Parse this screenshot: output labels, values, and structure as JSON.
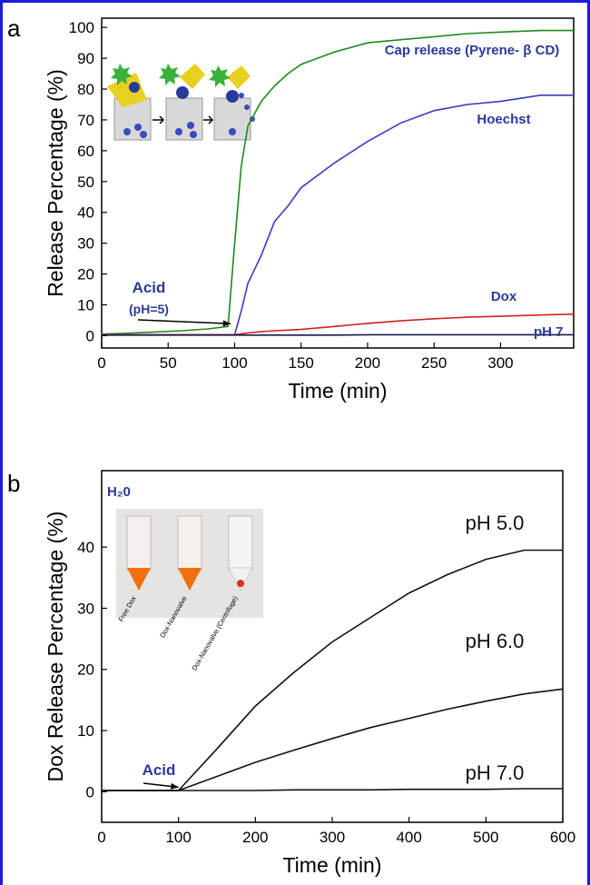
{
  "chart_data": [
    {
      "type": "line",
      "panel": "a",
      "x_label": "Time (min)",
      "y_label": "Release Percentage (%)",
      "xlim": [
        0,
        355
      ],
      "ylim": [
        -4,
        103
      ],
      "xticks": [
        0,
        50,
        100,
        150,
        200,
        250,
        300
      ],
      "yticks": [
        0,
        10,
        20,
        30,
        40,
        50,
        60,
        70,
        80,
        90,
        100
      ],
      "x": [
        0,
        20,
        40,
        60,
        80,
        95,
        100,
        105,
        110,
        120,
        130,
        140,
        150,
        175,
        200,
        225,
        250,
        275,
        300,
        330,
        355
      ],
      "series": [
        {
          "name": "Cap release (Pyrene- β CD)",
          "color": "#1f8a1f",
          "values": [
            0.5,
            0.8,
            1.2,
            1.6,
            2.2,
            3,
            30,
            55,
            68,
            76,
            81,
            85,
            88,
            92,
            95,
            96,
            97,
            98,
            98.5,
            99,
            99
          ]
        },
        {
          "name": "Hoechst",
          "color": "#3a3ac0",
          "values": [
            0.3,
            0.3,
            0.3,
            0.3,
            0.3,
            0.3,
            0.3,
            8,
            17,
            26,
            37,
            42,
            48,
            56,
            63,
            69,
            73,
            75,
            76,
            78,
            78
          ]
        },
        {
          "name": "Dox",
          "color": "#d02020",
          "values": [
            0.3,
            0.3,
            0.3,
            0.3,
            0.3,
            0.3,
            0.3,
            0.6,
            0.9,
            1.3,
            1.6,
            1.8,
            2,
            3,
            4,
            4.8,
            5.5,
            6,
            6.3,
            6.7,
            7
          ]
        },
        {
          "name": "pH 7",
          "color": "#1a1a4a",
          "values": [
            0.2,
            0.2,
            0.2,
            0.2,
            0.2,
            0.2,
            0.2,
            0.2,
            0.2,
            0.2,
            0.2,
            0.2,
            0.2,
            0.2,
            0.3,
            0.3,
            0.3,
            0.3,
            0.3,
            0.3,
            0.3
          ]
        }
      ],
      "annotations": [
        "Acid",
        "(pH=5)"
      ]
    },
    {
      "type": "line",
      "panel": "b",
      "x_label": "Time (min)",
      "y_label": "Dox Release Percentage (%)",
      "xlim": [
        0,
        600
      ],
      "ylim": [
        -5,
        52.5
      ],
      "xticks": [
        0,
        100,
        200,
        300,
        400,
        500,
        600
      ],
      "yticks": [
        0,
        10,
        20,
        30,
        40
      ],
      "x": [
        0,
        50,
        100,
        150,
        200,
        250,
        300,
        350,
        400,
        450,
        500,
        550,
        600
      ],
      "series": [
        {
          "name": "pH 5.0",
          "color": "#111111",
          "values": [
            0.2,
            0.2,
            0.2,
            7,
            14,
            19.5,
            24.5,
            28.5,
            32.5,
            35.5,
            38,
            39.5,
            39.5
          ]
        },
        {
          "name": "pH 6.0",
          "color": "#111111",
          "values": [
            0.2,
            0.2,
            0.2,
            2.5,
            4.8,
            6.8,
            8.7,
            10.5,
            12,
            13.5,
            14.8,
            16,
            16.8
          ]
        },
        {
          "name": "pH 7.0",
          "color": "#111111",
          "values": [
            0.2,
            0.2,
            0.2,
            0.2,
            0.2,
            0.3,
            0.3,
            0.3,
            0.4,
            0.4,
            0.4,
            0.5,
            0.5
          ]
        }
      ],
      "annotations": [
        "Acid"
      ],
      "inset_title": "H₂0",
      "inset_labels": [
        "Free Dox",
        "Dox-Nanovalve",
        "Dox-Nanovalve (Centrifuge)"
      ]
    }
  ]
}
